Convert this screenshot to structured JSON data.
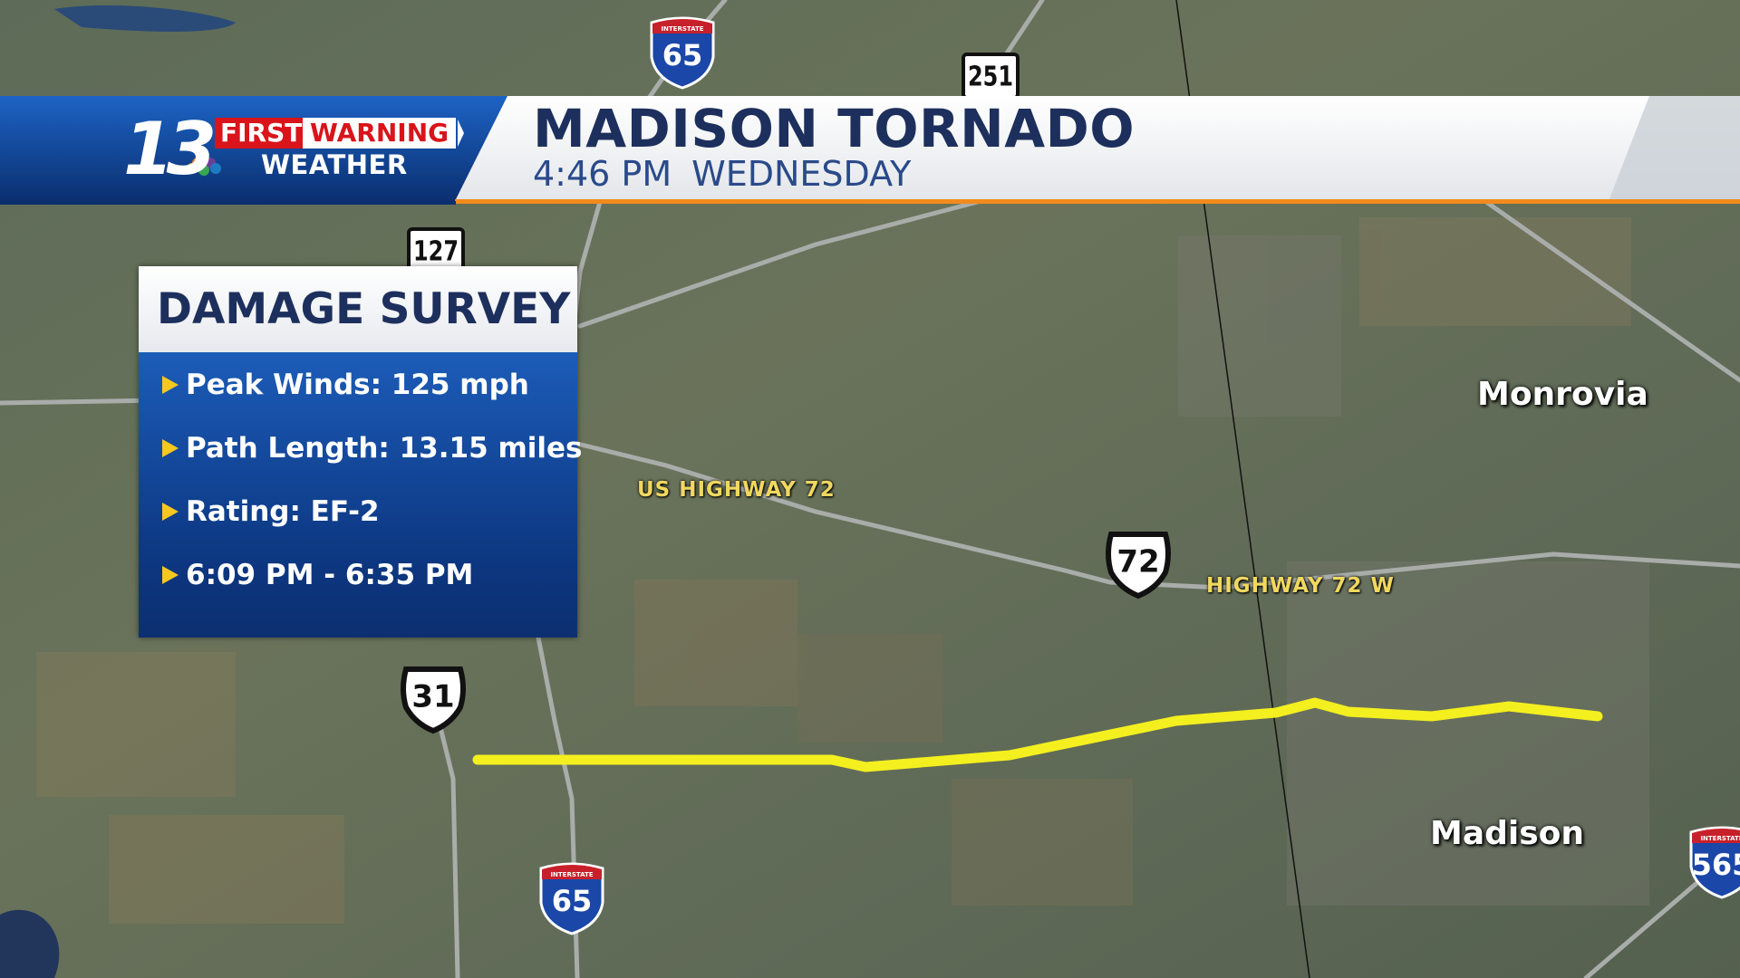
{
  "header": {
    "logo_number": "13",
    "logo_first": "FIRST",
    "logo_warning": "WARNING",
    "logo_weather": "WEATHER",
    "title": "MADISON TORNADO",
    "time": "4:46 PM",
    "day": "WEDNESDAY"
  },
  "survey": {
    "title": "DAMAGE SURVEY",
    "items": [
      "Peak Winds: 125 mph",
      "Path Length: 13.15 miles",
      "Rating: EF-2",
      "6:09 PM - 6:35 PM"
    ]
  },
  "map": {
    "places": [
      "Monrovia",
      "Madison"
    ],
    "road_labels": [
      "US HIGHWAY 72",
      "HIGHWAY 72 W"
    ],
    "shields": [
      {
        "type": "interstate",
        "label": "INTERSTATE",
        "number": "65"
      },
      {
        "type": "state",
        "number": "251"
      },
      {
        "type": "state",
        "number": "127"
      },
      {
        "type": "us",
        "number": "72"
      },
      {
        "type": "us",
        "number": "31"
      },
      {
        "type": "interstate",
        "label": "INTERSTATE",
        "number": "65"
      },
      {
        "type": "interstate",
        "label": "INTERSTATE",
        "number": "565"
      }
    ]
  }
}
